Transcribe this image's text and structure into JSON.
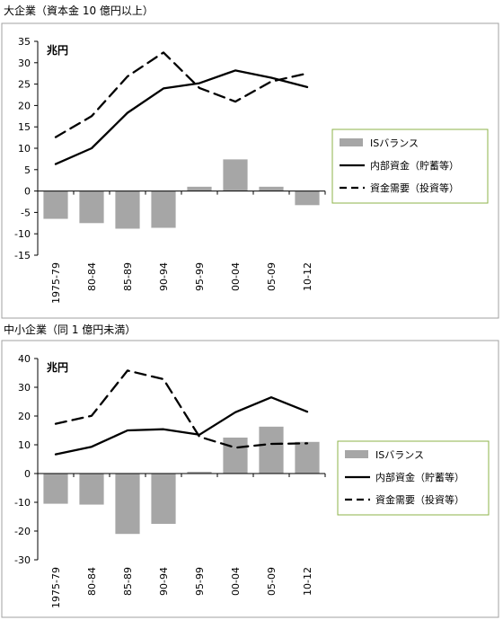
{
  "chart_data": [
    {
      "type": "bar+line",
      "title": "大企業（資本金 10 億円以上）",
      "unit": "兆円",
      "categories": [
        "1975-79",
        "80-84",
        "85-89",
        "90-94",
        "95-99",
        "00-04",
        "05-09",
        "10-12"
      ],
      "ylim": [
        -15,
        35
      ],
      "yticks": [
        35,
        30,
        25,
        20,
        15,
        10,
        5,
        0,
        -5,
        -10,
        -15
      ],
      "series": [
        {
          "name": "ISバランス",
          "kind": "bar",
          "color": "#a6a6a6",
          "values": [
            -6.5,
            -7.5,
            -8.8,
            -8.6,
            1.0,
            7.4,
            1.0,
            -3.3
          ]
        },
        {
          "name": "内部資金（貯蓄等）",
          "kind": "line",
          "style": "solid",
          "color": "#000000",
          "values": [
            6.3,
            10.0,
            18.3,
            24.0,
            25.2,
            28.2,
            26.5,
            24.3
          ]
        },
        {
          "name": "資金需要（投資等）",
          "kind": "line",
          "style": "dashed",
          "color": "#000000",
          "values": [
            12.6,
            17.5,
            26.8,
            32.4,
            24.1,
            20.9,
            25.6,
            27.5
          ]
        }
      ],
      "legend_position": "right"
    },
    {
      "type": "bar+line",
      "title": "中小企業（同 1 億円未満）",
      "unit": "兆円",
      "categories": [
        "1975-79",
        "80-84",
        "85-89",
        "90-94",
        "95-99",
        "00-04",
        "05-09",
        "10-12"
      ],
      "ylim": [
        -30,
        40
      ],
      "yticks": [
        40,
        30,
        20,
        10,
        0,
        -10,
        -20,
        -30
      ],
      "series": [
        {
          "name": "ISバランス",
          "kind": "bar",
          "color": "#a6a6a6",
          "values": [
            -10.5,
            -10.8,
            -21.0,
            -17.5,
            0.6,
            12.5,
            16.3,
            11.0
          ]
        },
        {
          "name": "内部資金（貯蓄等）",
          "kind": "line",
          "style": "solid",
          "color": "#000000",
          "values": [
            6.7,
            9.3,
            15.0,
            15.4,
            13.5,
            21.3,
            26.5,
            21.5
          ]
        },
        {
          "name": "資金需要（投資等）",
          "kind": "line",
          "style": "dashed",
          "color": "#000000",
          "values": [
            17.3,
            20.1,
            35.8,
            32.8,
            12.8,
            9.0,
            10.3,
            10.5
          ]
        }
      ],
      "legend_position": "right"
    }
  ]
}
